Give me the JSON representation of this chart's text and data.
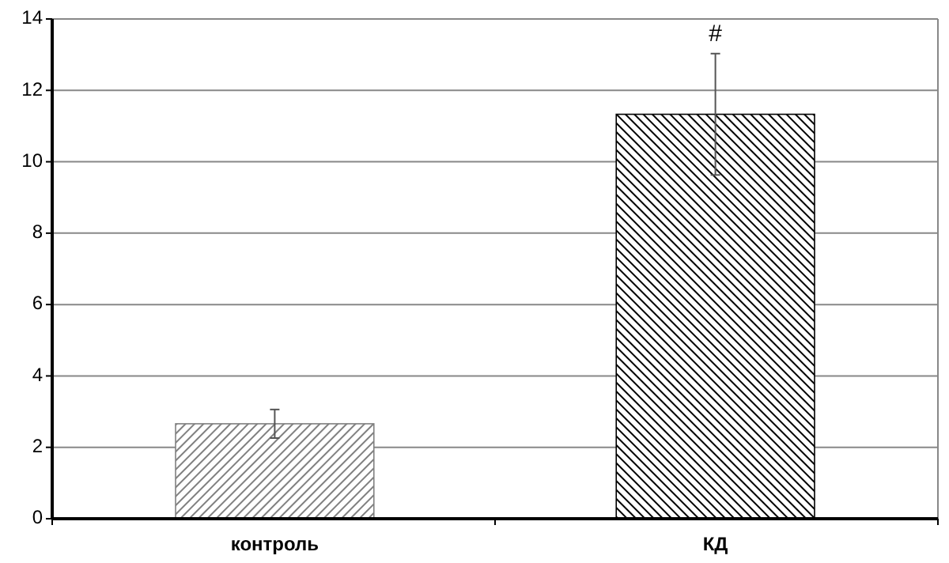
{
  "chart_data": {
    "type": "bar",
    "categories": [
      "контроль",
      "КД"
    ],
    "series": [
      {
        "colors": [
          "#808080",
          "#000000"
        ],
        "values": [
          2.66,
          11.33
        ],
        "errors": [
          0.4,
          1.7
        ]
      }
    ],
    "ylim": [
      0,
      14
    ],
    "yticks": [
      0,
      2,
      4,
      6,
      8,
      10,
      12,
      14
    ],
    "grid": "y",
    "annotations": [
      "#"
    ]
  }
}
